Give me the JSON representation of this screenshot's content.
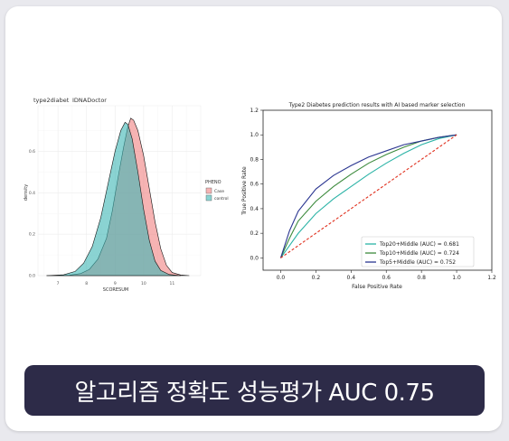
{
  "banner": {
    "text": "알고리즘 정확도 성능평가 AUC 0.75"
  },
  "chart_data": [
    {
      "type": "area",
      "title": "type2diabet",
      "subtitle": "IDNADoctor",
      "xlabel": "SCORESUM",
      "ylabel": "density",
      "xlim": [
        6.3,
        12.0
      ],
      "ylim": [
        0,
        0.82
      ],
      "xticks": [
        7,
        8,
        9,
        10,
        11
      ],
      "yticks": [
        0.0,
        0.2,
        0.4,
        0.6
      ],
      "legend": {
        "title": "PHENO",
        "position": "right"
      },
      "series": [
        {
          "name": "Case",
          "color": "#f08080",
          "x": [
            6.6,
            7.4,
            7.8,
            8.1,
            8.4,
            8.7,
            8.9,
            9.1,
            9.3,
            9.45,
            9.55,
            9.65,
            9.8,
            10.0,
            10.2,
            10.4,
            10.6,
            10.8,
            11.0,
            11.3,
            11.6
          ],
          "y": [
            0.0,
            0.002,
            0.01,
            0.03,
            0.08,
            0.18,
            0.31,
            0.47,
            0.62,
            0.72,
            0.76,
            0.75,
            0.7,
            0.58,
            0.42,
            0.26,
            0.13,
            0.05,
            0.015,
            0.003,
            0.0
          ]
        },
        {
          "name": "control",
          "color": "#3cb6b4",
          "x": [
            6.6,
            7.2,
            7.6,
            7.9,
            8.2,
            8.5,
            8.75,
            9.0,
            9.2,
            9.35,
            9.45,
            9.6,
            9.8,
            10.0,
            10.2,
            10.4,
            10.6,
            10.9,
            11.3
          ],
          "y": [
            0.0,
            0.004,
            0.02,
            0.06,
            0.14,
            0.28,
            0.44,
            0.6,
            0.7,
            0.74,
            0.73,
            0.66,
            0.5,
            0.32,
            0.17,
            0.07,
            0.025,
            0.005,
            0.0
          ]
        }
      ]
    },
    {
      "type": "line",
      "title": "Type2 Diabetes prediction results with AI based marker selection",
      "xlabel": "False Positive Rate",
      "ylabel": "True Positive Rate",
      "xlim": [
        -0.1,
        1.2
      ],
      "ylim": [
        -0.1,
        1.2
      ],
      "xticks": [
        0.0,
        0.2,
        0.4,
        0.6,
        0.8,
        1.0,
        1.2
      ],
      "yticks": [
        0.0,
        0.2,
        0.4,
        0.6,
        0.8,
        1.0,
        1.2
      ],
      "legend": {
        "position": "bottom-right"
      },
      "series": [
        {
          "name": "Top20+Middle (AUC) = 0.681",
          "color": "#2bb3a6",
          "x": [
            0.0,
            0.05,
            0.1,
            0.2,
            0.3,
            0.4,
            0.5,
            0.6,
            0.7,
            0.8,
            0.9,
            1.0
          ],
          "y": [
            0.0,
            0.1,
            0.2,
            0.36,
            0.48,
            0.58,
            0.68,
            0.77,
            0.85,
            0.92,
            0.97,
            1.0
          ]
        },
        {
          "name": "Top10+Middle (AUC) = 0.724",
          "color": "#3c8a3c",
          "x": [
            0.0,
            0.05,
            0.1,
            0.2,
            0.3,
            0.4,
            0.5,
            0.6,
            0.7,
            0.8,
            0.9,
            1.0
          ],
          "y": [
            0.0,
            0.16,
            0.3,
            0.46,
            0.58,
            0.68,
            0.77,
            0.84,
            0.9,
            0.95,
            0.98,
            1.0
          ]
        },
        {
          "name": "Top5+Middle (AUC) = 0.752",
          "color": "#2a3590",
          "x": [
            0.0,
            0.05,
            0.1,
            0.2,
            0.3,
            0.4,
            0.5,
            0.6,
            0.7,
            0.8,
            0.9,
            1.0
          ],
          "y": [
            0.0,
            0.22,
            0.38,
            0.56,
            0.67,
            0.75,
            0.82,
            0.87,
            0.92,
            0.95,
            0.98,
            1.0
          ]
        },
        {
          "name": "",
          "color": "#e0301e",
          "dashed": true,
          "x": [
            0.0,
            1.0
          ],
          "y": [
            0.0,
            1.0
          ]
        }
      ]
    }
  ]
}
